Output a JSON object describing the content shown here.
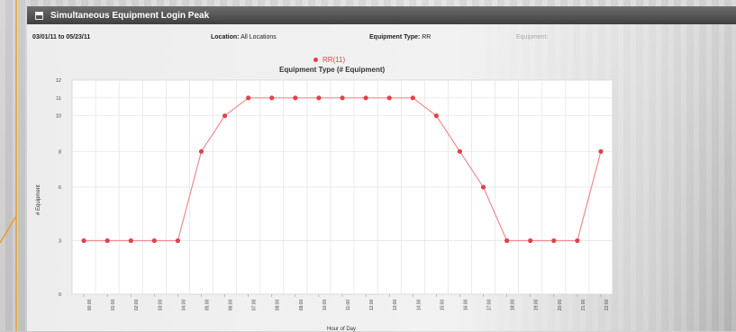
{
  "panel": {
    "title": "Simultaneous Equipment Login Peak"
  },
  "filters": {
    "date_range": "03/01/11 to 05/23/11",
    "location_label": "Location:",
    "location_value": "All Locations",
    "equipment_type_label": "Equipment Type:",
    "equipment_type_value": "RR",
    "equipment_label": "Equipment:"
  },
  "colors": {
    "series": "#e0424a",
    "titlebar": "#4a4a4a",
    "accent_line": "#e8a020"
  },
  "chart_data": {
    "type": "line",
    "title": "Equipment Type (# Equipment)",
    "xlabel": "Hour of Day",
    "ylabel": "# Equipment",
    "ylim": [
      0,
      12
    ],
    "yticks": [
      0,
      3,
      6,
      8,
      10,
      11,
      12
    ],
    "grid": true,
    "legend_position": "top-center",
    "categories": [
      "00:00",
      "01:00",
      "02:00",
      "03:00",
      "04:00",
      "05:00",
      "06:00",
      "07:00",
      "08:00",
      "09:00",
      "10:00",
      "11:00",
      "12:00",
      "13:00",
      "14:00",
      "15:00",
      "16:00",
      "17:00",
      "18:00",
      "19:00",
      "20:00",
      "21:00",
      "22:00"
    ],
    "series": [
      {
        "name": "RR(11)",
        "values": [
          3,
          3,
          3,
          3,
          3,
          8,
          10,
          11,
          11,
          11,
          11,
          11,
          11,
          11,
          11,
          10,
          8,
          6,
          3,
          3,
          3,
          3,
          8
        ]
      }
    ]
  }
}
